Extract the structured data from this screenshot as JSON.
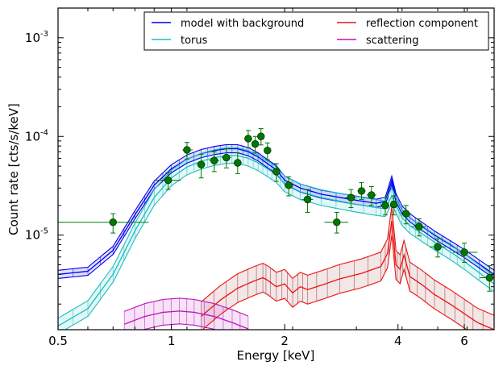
{
  "chart_data": {
    "type": "line",
    "xlabel": "Energy [keV]",
    "ylabel": "Count rate [cts/s/keV]",
    "xscale": "log",
    "yscale": "log",
    "xlim": [
      0.5,
      7.2
    ],
    "ylim": [
      1.1e-06,
      0.002
    ],
    "grid": false,
    "legend_placement": "top-right",
    "x_ticks": [
      {
        "value": 0.5,
        "label": "0.5"
      },
      {
        "value": 1,
        "label": "1"
      },
      {
        "value": 2,
        "label": "2"
      },
      {
        "value": 4,
        "label": "4"
      },
      {
        "value": 6,
        "label": "6"
      }
    ],
    "y_ticks": [
      {
        "value": 1e-05,
        "base": "10",
        "exp": "-5"
      },
      {
        "value": 0.0001,
        "base": "10",
        "exp": "-4"
      },
      {
        "value": 0.001,
        "base": "10",
        "exp": "-3"
      }
    ],
    "legend": [
      {
        "label": "model with background",
        "color": "#0000ee"
      },
      {
        "label": "reflection component",
        "color": "#ee1111"
      },
      {
        "label": "torus",
        "color": "#1cbdbd"
      },
      {
        "label": "scattering",
        "color": "#bb11bb"
      }
    ],
    "series": [
      {
        "name": "model with background",
        "color": "#0000ee",
        "band_color": "#0000ee",
        "x": [
          0.5,
          0.6,
          0.7,
          0.8,
          0.9,
          1.0,
          1.1,
          1.2,
          1.3,
          1.4,
          1.5,
          1.6,
          1.7,
          1.8,
          1.9,
          2.0,
          2.2,
          2.5,
          3.0,
          3.5,
          3.7,
          3.85,
          3.95,
          4.1,
          4.3,
          4.6,
          5.0,
          5.5,
          6.0,
          7.2
        ],
        "y": [
          4e-06,
          4.3e-06,
          7e-06,
          1.6e-05,
          3.2e-05,
          4.7e-05,
          5.9e-05,
          6.7e-05,
          7.2e-05,
          7.5e-05,
          7.5e-05,
          7e-05,
          6.2e-05,
          5.3e-05,
          4.6e-05,
          3.6e-05,
          3e-05,
          2.6e-05,
          2.3e-05,
          2.1e-05,
          2.2e-05,
          3.6e-05,
          2.4e-05,
          1.8e-05,
          1.5e-05,
          1.25e-05,
          1e-05,
          8e-06,
          6.5e-06,
          4e-06
        ],
        "band_rel": 0.1
      },
      {
        "name": "torus",
        "color": "#1cbdbd",
        "band_color": "#1cbdbd",
        "x": [
          0.5,
          0.6,
          0.7,
          0.8,
          0.9,
          1.0,
          1.1,
          1.2,
          1.3,
          1.4,
          1.5,
          1.6,
          1.7,
          1.8,
          1.9,
          2.0,
          2.2,
          2.5,
          3.0,
          3.5,
          3.7,
          3.85,
          3.95,
          4.1,
          4.3,
          4.6,
          5.0,
          5.5,
          6.0,
          7.2
        ],
        "y": [
          1.2e-06,
          1.8e-06,
          4e-06,
          1.1e-05,
          2.4e-05,
          3.8e-05,
          4.9e-05,
          5.6e-05,
          6.1e-05,
          6.4e-05,
          6.4e-05,
          6e-05,
          5.4e-05,
          4.7e-05,
          4.1e-05,
          3.3e-05,
          2.75e-05,
          2.4e-05,
          2.1e-05,
          1.9e-05,
          1.85e-05,
          2.5e-05,
          2e-05,
          1.5e-05,
          1.25e-05,
          1.05e-05,
          8.5e-06,
          6.8e-06,
          5.4e-06,
          3.2e-06
        ],
        "band_rel": 0.2
      },
      {
        "name": "reflection component",
        "color": "#ee1111",
        "band_color": "#993333",
        "x": [
          1.2,
          1.35,
          1.5,
          1.65,
          1.75,
          1.8,
          1.9,
          2.0,
          2.1,
          2.2,
          2.3,
          2.5,
          2.8,
          3.2,
          3.6,
          3.75,
          3.85,
          3.95,
          4.05,
          4.15,
          4.3,
          4.6,
          5.0,
          5.5,
          6.0,
          6.5,
          7.2
        ],
        "y": [
          1.5e-06,
          2.2e-06,
          2.9e-06,
          3.4e-06,
          3.7e-06,
          3.5e-06,
          3e-06,
          3.2e-06,
          2.6e-06,
          3e-06,
          2.8e-06,
          3.1e-06,
          3.6e-06,
          4.1e-06,
          4.8e-06,
          6.5e-06,
          1.4e-05,
          5e-06,
          4.5e-06,
          6.3e-06,
          3.8e-06,
          3.2e-06,
          2.5e-06,
          2e-06,
          1.6e-06,
          1.3e-06,
          1.1e-06
        ],
        "band_rel": 0.4
      },
      {
        "name": "scattering",
        "color": "#bb11bb",
        "band_color": "#bb11bb",
        "x": [
          0.75,
          0.85,
          0.95,
          1.05,
          1.15,
          1.3,
          1.45,
          1.6
        ],
        "y": [
          1.25e-06,
          1.5e-06,
          1.65e-06,
          1.7e-06,
          1.65e-06,
          1.5e-06,
          1.3e-06,
          1.12e-06
        ],
        "band_rel": 0.35
      }
    ],
    "data_points": {
      "color": "#007700",
      "points": [
        {
          "x": 0.7,
          "y": 1.35e-05,
          "xerr": [
            0.5,
            0.87
          ],
          "yerr": [
            1.05e-05,
            1.65e-05
          ]
        },
        {
          "x": 0.98,
          "y": 3.6e-05,
          "xerr": [
            0.9,
            1.06
          ],
          "yerr": [
            2.9e-05,
            4.3e-05
          ]
        },
        {
          "x": 1.1,
          "y": 7.3e-05,
          "xerr": [
            1.07,
            1.14
          ],
          "yerr": [
            5.9e-05,
            8.7e-05
          ]
        },
        {
          "x": 1.2,
          "y": 5.2e-05,
          "xerr": [
            1.17,
            1.23
          ],
          "yerr": [
            3.8e-05,
            6.6e-05
          ]
        },
        {
          "x": 1.3,
          "y": 5.7e-05,
          "xerr": [
            1.26,
            1.34
          ],
          "yerr": [
            4.4e-05,
            7e-05
          ]
        },
        {
          "x": 1.4,
          "y": 6.1e-05,
          "xerr": [
            1.36,
            1.44
          ],
          "yerr": [
            4.8e-05,
            7.5e-05
          ]
        },
        {
          "x": 1.5,
          "y": 5.4e-05,
          "xerr": [
            1.46,
            1.54
          ],
          "yerr": [
            4.2e-05,
            6.8e-05
          ]
        },
        {
          "x": 1.6,
          "y": 9.5e-05,
          "xerr": [
            1.56,
            1.64
          ],
          "yerr": [
            7.7e-05,
            0.000115
          ]
        },
        {
          "x": 1.67,
          "y": 8.4e-05,
          "xerr": [
            1.64,
            1.7
          ],
          "yerr": [
            6.8e-05,
            0.0001
          ]
        },
        {
          "x": 1.73,
          "y": 0.0001,
          "xerr": [
            1.7,
            1.76
          ],
          "yerr": [
            8.2e-05,
            0.00012
          ]
        },
        {
          "x": 1.8,
          "y": 7.2e-05,
          "xerr": [
            1.77,
            1.83
          ],
          "yerr": [
            5.8e-05,
            8.6e-05
          ]
        },
        {
          "x": 1.9,
          "y": 4.4e-05,
          "xerr": [
            1.86,
            1.94
          ],
          "yerr": [
            3.5e-05,
            5.3e-05
          ]
        },
        {
          "x": 2.05,
          "y": 3.2e-05,
          "xerr": [
            2.0,
            2.1
          ],
          "yerr": [
            2.5e-05,
            3.9e-05
          ]
        },
        {
          "x": 2.3,
          "y": 2.3e-05,
          "xerr": [
            2.22,
            2.38
          ],
          "yerr": [
            1.7e-05,
            2.9e-05
          ]
        },
        {
          "x": 2.75,
          "y": 1.35e-05,
          "xerr": [
            2.55,
            2.95
          ],
          "yerr": [
            1.05e-05,
            1.7e-05
          ]
        },
        {
          "x": 3.0,
          "y": 2.4e-05,
          "xerr": [
            2.9,
            3.1
          ],
          "yerr": [
            1.9e-05,
            2.9e-05
          ]
        },
        {
          "x": 3.2,
          "y": 2.8e-05,
          "xerr": [
            3.12,
            3.28
          ],
          "yerr": [
            2.3e-05,
            3.4e-05
          ]
        },
        {
          "x": 3.4,
          "y": 2.55e-05,
          "xerr": [
            3.3,
            3.5
          ],
          "yerr": [
            2e-05,
            3.1e-05
          ]
        },
        {
          "x": 3.7,
          "y": 2e-05,
          "xerr": [
            3.6,
            3.8
          ],
          "yerr": [
            1.6e-05,
            2.4e-05
          ]
        },
        {
          "x": 3.9,
          "y": 2.05e-05,
          "xerr": [
            3.82,
            3.98
          ],
          "yerr": [
            1.6e-05,
            2.5e-05
          ]
        },
        {
          "x": 4.2,
          "y": 1.65e-05,
          "xerr": [
            4.07,
            4.33
          ],
          "yerr": [
            1.3e-05,
            2e-05
          ]
        },
        {
          "x": 4.55,
          "y": 1.22e-05,
          "xerr": [
            4.35,
            4.75
          ],
          "yerr": [
            9.8e-06,
            1.46e-05
          ]
        },
        {
          "x": 5.1,
          "y": 7.6e-06,
          "xerr": [
            4.85,
            5.35
          ],
          "yerr": [
            6e-06,
            9.2e-06
          ]
        },
        {
          "x": 6.0,
          "y": 6.7e-06,
          "xerr": [
            5.6,
            6.5
          ],
          "yerr": [
            5.3e-06,
            8.3e-06
          ]
        },
        {
          "x": 7.0,
          "y": 3.7e-06,
          "xerr": [
            6.6,
            7.2
          ],
          "yerr": [
            2.7e-06,
            4.9e-06
          ]
        }
      ]
    }
  }
}
